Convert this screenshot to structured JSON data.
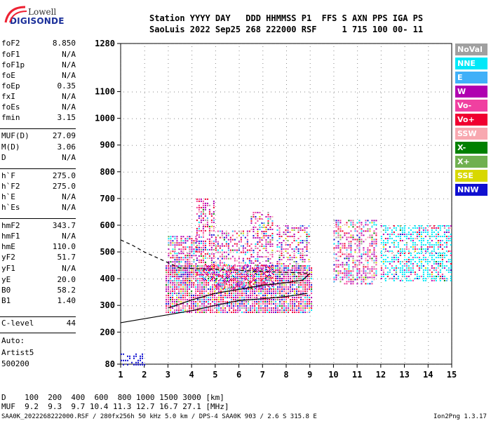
{
  "logo": {
    "line1": "Lowell",
    "line2": "DIGISONDE"
  },
  "header": {
    "line1": "Station YYYY DAY   DDD HHMMSS P1  FFS S AXN PPS IGA PS",
    "line2": "SaoLuis 2022 Sep25 268 222000 RSF     1 715 100 00- 11"
  },
  "params": [
    {
      "name": "foF2",
      "value": "8.850"
    },
    {
      "name": "foF1",
      "value": "N/A"
    },
    {
      "name": "foF1p",
      "value": "N/A"
    },
    {
      "name": "foE",
      "value": "N/A"
    },
    {
      "name": "foEp",
      "value": "0.35"
    },
    {
      "name": "fxI",
      "value": "N/A"
    },
    {
      "name": "foEs",
      "value": "N/A"
    },
    {
      "name": "fmin",
      "value": "3.15"
    },
    {
      "name": "MUF(D)",
      "value": "27.09"
    },
    {
      "name": "M(D)",
      "value": "3.06"
    },
    {
      "name": "D",
      "value": "N/A"
    },
    {
      "name": "h`F",
      "value": "275.0"
    },
    {
      "name": "h`F2",
      "value": "275.0"
    },
    {
      "name": "h`E",
      "value": "N/A"
    },
    {
      "name": "h`Es",
      "value": "N/A"
    },
    {
      "name": "hmF2",
      "value": "343.7"
    },
    {
      "name": "hmF1",
      "value": "N/A"
    },
    {
      "name": "hmE",
      "value": "110.0"
    },
    {
      "name": "yF2",
      "value": "51.7"
    },
    {
      "name": "yF1",
      "value": "N/A"
    },
    {
      "name": "yE",
      "value": "20.0"
    },
    {
      "name": "B0",
      "value": "58.2"
    },
    {
      "name": "B1",
      "value": "1.40"
    },
    {
      "name": "C-level",
      "value": "44"
    }
  ],
  "auto": {
    "line1": "Auto:",
    "line2": "Artist5",
    "line3": "500200"
  },
  "legend": [
    {
      "label": "NoVal",
      "color": "#a0a0a0"
    },
    {
      "label": "NNE",
      "color": "#00e8f8"
    },
    {
      "label": "E",
      "color": "#40b0f8"
    },
    {
      "label": "W",
      "color": "#b000b0"
    },
    {
      "label": "Vo-",
      "color": "#f040a0"
    },
    {
      "label": "Vo+",
      "color": "#f00030"
    },
    {
      "label": "SSW",
      "color": "#f8a8b0"
    },
    {
      "label": "X-",
      "color": "#008000"
    },
    {
      "label": "X+",
      "color": "#70b050"
    },
    {
      "label": "SSE",
      "color": "#d8d800"
    },
    {
      "label": "NNW",
      "color": "#1010d0"
    }
  ],
  "bottom": {
    "line1": "D    100  200  400  600  800 1000 1500 3000 [km]",
    "line2": "MUF  9.2  9.3  9.7 10.4 11.3 12.7 16.7 27.1 [MHz]"
  },
  "footer": {
    "left": "SAA0K_2022268222000.RSF / 280fx256h 50 kHz 5.0 km / DPS-4 SAA0K 903 / 2.6 S 315.8 E",
    "right": "Ion2Png 1.3.17"
  },
  "chart_data": {
    "type": "scatter",
    "title": "",
    "xlabel": "",
    "ylabel": "",
    "xlim": [
      1,
      15
    ],
    "ylim": [
      80,
      1280
    ],
    "x_ticks": [
      1,
      2,
      3,
      4,
      5,
      6,
      7,
      8,
      9,
      10,
      11,
      12,
      13,
      14,
      15
    ],
    "y_ticks": [
      80,
      200,
      300,
      400,
      500,
      600,
      700,
      800,
      900,
      1000,
      1100,
      1280
    ],
    "grid": true,
    "trace_lower": {
      "x": [
        1.0,
        3.0,
        4.0,
        5.0,
        6.0,
        7.0,
        8.0,
        8.9
      ],
      "y": [
        235,
        265,
        280,
        300,
        318,
        325,
        333,
        345
      ]
    },
    "trace_upper": {
      "x": [
        3.0,
        4.0,
        5.0,
        6.0,
        7.0,
        8.0,
        8.7,
        9.0
      ],
      "y": [
        290,
        320,
        345,
        360,
        375,
        385,
        395,
        420
      ]
    },
    "trace_dashed": {
      "x": [
        1.0,
        1.5,
        2.0,
        2.5,
        3.0,
        3.5,
        9.0
      ],
      "y": [
        545,
        525,
        500,
        480,
        460,
        440,
        420
      ]
    },
    "echo_regions": [
      {
        "x": [
          2.9,
          9.1
        ],
        "y": [
          270,
          450
        ],
        "density": 0.9
      },
      {
        "x": [
          3.0,
          4.2
        ],
        "y": [
          380,
          560
        ],
        "density": 0.7
      },
      {
        "x": [
          4.2,
          5.0
        ],
        "y": [
          400,
          700
        ],
        "density": 0.6
      },
      {
        "x": [
          5.0,
          6.5
        ],
        "y": [
          360,
          580
        ],
        "density": 0.5
      },
      {
        "x": [
          6.5,
          7.4
        ],
        "y": [
          360,
          650
        ],
        "density": 0.5
      },
      {
        "x": [
          7.6,
          9.0
        ],
        "y": [
          380,
          600
        ],
        "density": 0.5
      },
      {
        "x": [
          10.0,
          11.8
        ],
        "y": [
          380,
          620
        ],
        "density": 0.55
      },
      {
        "x": [
          12.0,
          15.0
        ],
        "y": [
          390,
          600
        ],
        "density": 0.6
      },
      {
        "x": [
          1.0,
          2.0
        ],
        "y": [
          80,
          120
        ],
        "density": 0.5
      }
    ]
  }
}
